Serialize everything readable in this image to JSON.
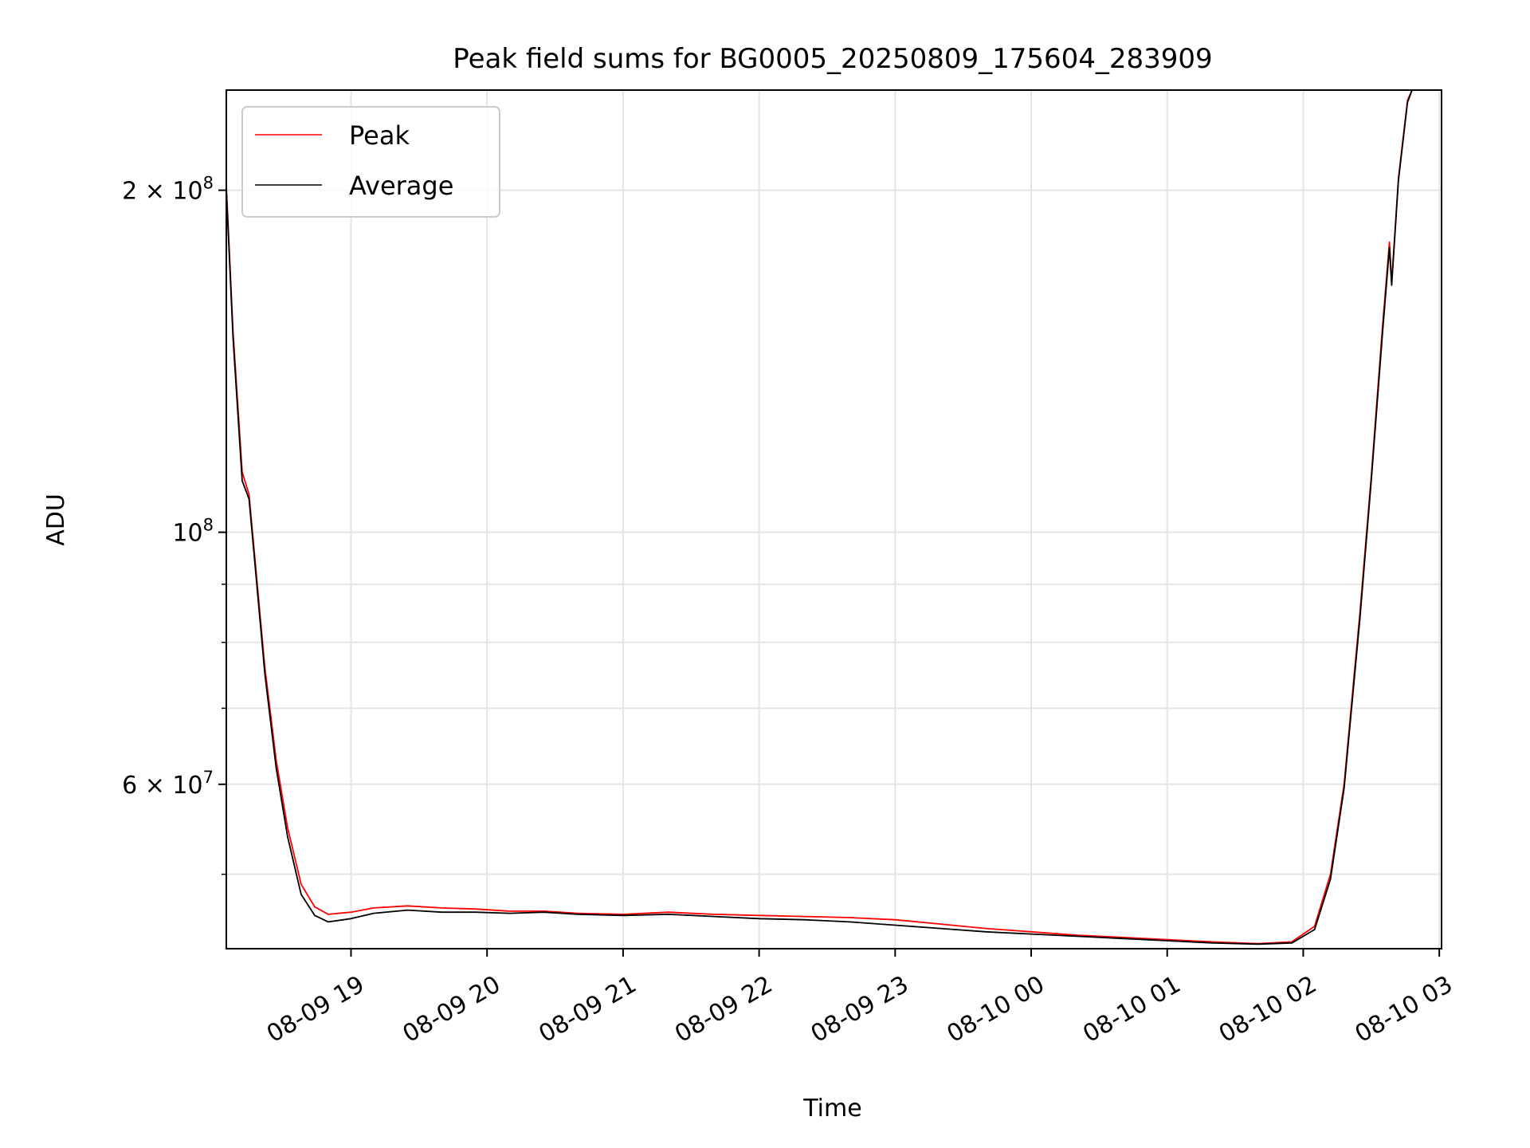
{
  "chart_data": {
    "type": "line",
    "title": "Peak field sums for BG0005_20250809_175604_283909",
    "xlabel": "Time",
    "ylabel": "ADU",
    "y_scale": "log",
    "ylim": [
      43000000,
      245000000
    ],
    "xlim": [
      "2025-08-09 18:05",
      "2025-08-10 03:01"
    ],
    "grid": true,
    "legend_position": "upper-left",
    "x_ticks": [
      {
        "t": "2025-08-09 19:00",
        "label": "08-09 19"
      },
      {
        "t": "2025-08-09 20:00",
        "label": "08-09 20"
      },
      {
        "t": "2025-08-09 21:00",
        "label": "08-09 21"
      },
      {
        "t": "2025-08-09 22:00",
        "label": "08-09 22"
      },
      {
        "t": "2025-08-09 23:00",
        "label": "08-09 23"
      },
      {
        "t": "2025-08-10 00:00",
        "label": "08-10 00"
      },
      {
        "t": "2025-08-10 01:00",
        "label": "08-10 01"
      },
      {
        "t": "2025-08-10 02:00",
        "label": "08-10 02"
      },
      {
        "t": "2025-08-10 03:00",
        "label": "08-10 03"
      }
    ],
    "y_major_ticks": [
      {
        "value": 200000000,
        "base": "2 × 10",
        "exp": "8"
      },
      {
        "value": 100000000,
        "base": "10",
        "exp": "8"
      },
      {
        "value": 60000000,
        "base": "6 × 10",
        "exp": "7"
      }
    ],
    "y_minor_ticks": [
      50000000,
      70000000,
      80000000,
      90000000
    ],
    "series": [
      {
        "name": "Peak",
        "color": "#ff0000",
        "points": [
          [
            "2025-08-09 18:05",
            202000000
          ],
          [
            "2025-08-09 18:08",
            150000000
          ],
          [
            "2025-08-09 18:12",
            113000000
          ],
          [
            "2025-08-09 18:15",
            108000000
          ],
          [
            "2025-08-09 18:18",
            93000000
          ],
          [
            "2025-08-09 18:22",
            76000000
          ],
          [
            "2025-08-09 18:27",
            63000000
          ],
          [
            "2025-08-09 18:32",
            55000000
          ],
          [
            "2025-08-09 18:38",
            49000000
          ],
          [
            "2025-08-09 18:44",
            46800000
          ],
          [
            "2025-08-09 18:50",
            46100000
          ],
          [
            "2025-08-09 19:00",
            46300000
          ],
          [
            "2025-08-09 19:10",
            46700000
          ],
          [
            "2025-08-09 19:25",
            46900000
          ],
          [
            "2025-08-09 19:40",
            46700000
          ],
          [
            "2025-08-09 19:55",
            46600000
          ],
          [
            "2025-08-09 20:10",
            46400000
          ],
          [
            "2025-08-09 20:25",
            46400000
          ],
          [
            "2025-08-09 20:40",
            46200000
          ],
          [
            "2025-08-09 21:00",
            46100000
          ],
          [
            "2025-08-09 21:20",
            46300000
          ],
          [
            "2025-08-09 21:40",
            46100000
          ],
          [
            "2025-08-09 22:00",
            46000000
          ],
          [
            "2025-08-09 22:20",
            45900000
          ],
          [
            "2025-08-09 22:40",
            45800000
          ],
          [
            "2025-08-09 23:00",
            45600000
          ],
          [
            "2025-08-09 23:20",
            45200000
          ],
          [
            "2025-08-09 23:40",
            44800000
          ],
          [
            "2025-08-10 00:00",
            44500000
          ],
          [
            "2025-08-10 00:20",
            44200000
          ],
          [
            "2025-08-10 00:40",
            44000000
          ],
          [
            "2025-08-10 01:00",
            43800000
          ],
          [
            "2025-08-10 01:20",
            43600000
          ],
          [
            "2025-08-10 01:40",
            43450000
          ],
          [
            "2025-08-10 01:55",
            43600000
          ],
          [
            "2025-08-10 02:05",
            45000000
          ],
          [
            "2025-08-10 02:12",
            50000000
          ],
          [
            "2025-08-10 02:18",
            60000000
          ],
          [
            "2025-08-10 02:25",
            85000000
          ],
          [
            "2025-08-10 02:30",
            112000000
          ],
          [
            "2025-08-10 02:35",
            152000000
          ],
          [
            "2025-08-10 02:38",
            180000000
          ],
          [
            "2025-08-10 02:39",
            166000000
          ],
          [
            "2025-08-10 02:42",
            205000000
          ],
          [
            "2025-08-10 02:46",
            240000000
          ],
          [
            "2025-08-10 02:48",
            245000000
          ]
        ]
      },
      {
        "name": "Average",
        "color": "#000000",
        "points": [
          [
            "2025-08-09 18:05",
            200000000
          ],
          [
            "2025-08-09 18:08",
            148000000
          ],
          [
            "2025-08-09 18:12",
            111000000
          ],
          [
            "2025-08-09 18:15",
            107000000
          ],
          [
            "2025-08-09 18:18",
            92000000
          ],
          [
            "2025-08-09 18:22",
            75000000
          ],
          [
            "2025-08-09 18:27",
            62000000
          ],
          [
            "2025-08-09 18:32",
            54000000
          ],
          [
            "2025-08-09 18:38",
            48000000
          ],
          [
            "2025-08-09 18:44",
            46000000
          ],
          [
            "2025-08-09 18:50",
            45400000
          ],
          [
            "2025-08-09 19:00",
            45700000
          ],
          [
            "2025-08-09 19:10",
            46200000
          ],
          [
            "2025-08-09 19:25",
            46500000
          ],
          [
            "2025-08-09 19:40",
            46300000
          ],
          [
            "2025-08-09 19:55",
            46300000
          ],
          [
            "2025-08-09 20:10",
            46200000
          ],
          [
            "2025-08-09 20:25",
            46300000
          ],
          [
            "2025-08-09 20:40",
            46100000
          ],
          [
            "2025-08-09 21:00",
            46000000
          ],
          [
            "2025-08-09 21:20",
            46100000
          ],
          [
            "2025-08-09 21:40",
            45900000
          ],
          [
            "2025-08-09 22:00",
            45700000
          ],
          [
            "2025-08-09 22:20",
            45600000
          ],
          [
            "2025-08-09 22:40",
            45400000
          ],
          [
            "2025-08-09 23:00",
            45100000
          ],
          [
            "2025-08-09 23:20",
            44800000
          ],
          [
            "2025-08-09 23:40",
            44500000
          ],
          [
            "2025-08-10 00:00",
            44300000
          ],
          [
            "2025-08-10 00:20",
            44100000
          ],
          [
            "2025-08-10 00:40",
            43900000
          ],
          [
            "2025-08-10 01:00",
            43700000
          ],
          [
            "2025-08-10 01:20",
            43500000
          ],
          [
            "2025-08-10 01:40",
            43400000
          ],
          [
            "2025-08-10 01:55",
            43500000
          ],
          [
            "2025-08-10 02:05",
            44700000
          ],
          [
            "2025-08-10 02:12",
            49500000
          ],
          [
            "2025-08-10 02:18",
            59500000
          ],
          [
            "2025-08-10 02:25",
            84000000
          ],
          [
            "2025-08-10 02:30",
            111000000
          ],
          [
            "2025-08-10 02:35",
            150000000
          ],
          [
            "2025-08-10 02:38",
            178000000
          ],
          [
            "2025-08-10 02:39",
            165000000
          ],
          [
            "2025-08-10 02:42",
            204000000
          ],
          [
            "2025-08-10 02:46",
            239000000
          ],
          [
            "2025-08-10 02:48",
            245000000
          ]
        ]
      }
    ]
  }
}
